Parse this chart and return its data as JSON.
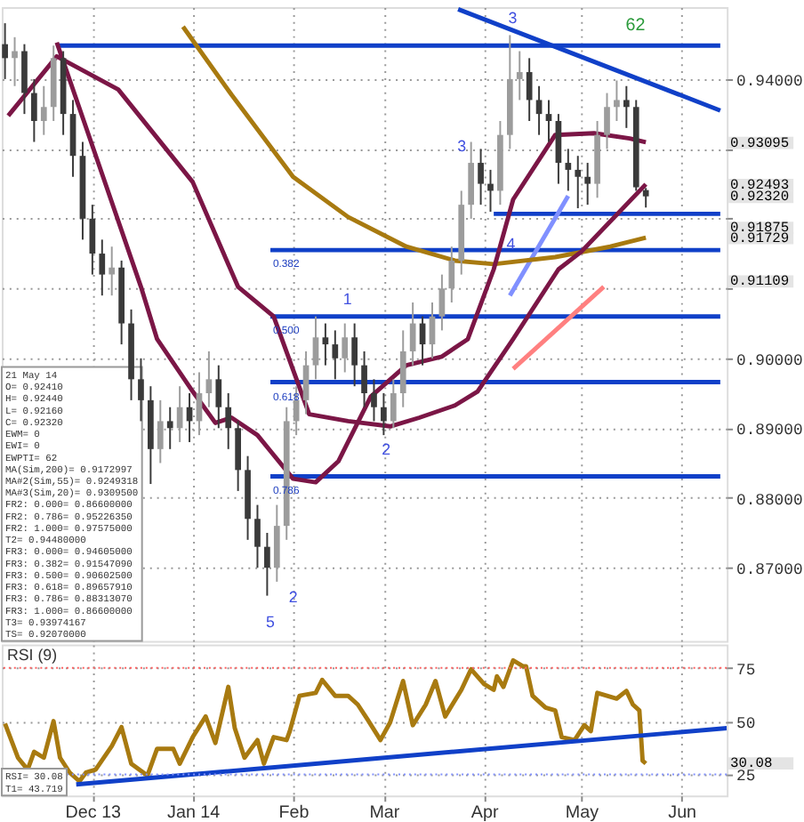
{
  "chart_data": [
    {
      "type": "candlestick",
      "x": [
        "2013-11-04",
        "2013-11-07",
        "2013-11-10",
        "2013-11-13",
        "2013-11-16",
        "2013-11-19",
        "2013-11-22",
        "2013-11-25",
        "2013-11-28",
        "2013-12-01",
        "2013-12-04",
        "2013-12-07",
        "2013-12-10",
        "2013-12-13",
        "2013-12-16",
        "2013-12-19",
        "2013-12-22",
        "2013-12-25",
        "2013-12-28",
        "2013-12-31",
        "2014-01-03",
        "2014-01-06",
        "2014-01-09",
        "2014-01-12",
        "2014-01-15",
        "2014-01-18",
        "2014-01-21",
        "2014-01-24",
        "2014-01-27",
        "2014-01-30",
        "2014-02-02",
        "2014-02-05",
        "2014-02-08",
        "2014-02-11",
        "2014-02-14",
        "2014-02-17",
        "2014-02-20",
        "2014-02-23",
        "2014-02-26",
        "2014-03-01",
        "2014-03-04",
        "2014-03-07",
        "2014-03-10",
        "2014-03-13",
        "2014-03-16",
        "2014-03-19",
        "2014-03-22",
        "2014-03-25",
        "2014-03-28",
        "2014-03-31",
        "2014-04-03",
        "2014-04-06",
        "2014-04-09",
        "2014-04-12",
        "2014-04-15",
        "2014-04-18",
        "2014-04-21",
        "2014-04-24",
        "2014-04-27",
        "2014-04-30",
        "2014-05-03",
        "2014-05-06",
        "2014-05-09",
        "2014-05-12",
        "2014-05-15",
        "2014-05-18",
        "2014-05-21"
      ],
      "ohlc": [
        [
          0.945,
          0.948,
          0.94,
          0.943
        ],
        [
          0.943,
          0.946,
          0.939,
          0.944
        ],
        [
          0.944,
          0.945,
          0.935,
          0.938
        ],
        [
          0.938,
          0.94,
          0.931,
          0.934
        ],
        [
          0.934,
          0.939,
          0.932,
          0.936
        ],
        [
          0.936,
          0.9448,
          0.934,
          0.943
        ],
        [
          0.943,
          0.944,
          0.932,
          0.935
        ],
        [
          0.935,
          0.937,
          0.926,
          0.929
        ],
        [
          0.929,
          0.931,
          0.917,
          0.92
        ],
        [
          0.92,
          0.922,
          0.912,
          0.915
        ],
        [
          0.915,
          0.917,
          0.909,
          0.912
        ],
        [
          0.912,
          0.916,
          0.909,
          0.913
        ],
        [
          0.913,
          0.914,
          0.902,
          0.905
        ],
        [
          0.905,
          0.907,
          0.894,
          0.897
        ],
        [
          0.897,
          0.9,
          0.891,
          0.894
        ],
        [
          0.894,
          0.896,
          0.882,
          0.887
        ],
        [
          0.887,
          0.894,
          0.885,
          0.891
        ],
        [
          0.891,
          0.893,
          0.887,
          0.89
        ],
        [
          0.89,
          0.896,
          0.888,
          0.893
        ],
        [
          0.893,
          0.895,
          0.888,
          0.891
        ],
        [
          0.891,
          0.898,
          0.889,
          0.895
        ],
        [
          0.895,
          0.901,
          0.893,
          0.897
        ],
        [
          0.897,
          0.899,
          0.89,
          0.893
        ],
        [
          0.893,
          0.895,
          0.887,
          0.89
        ],
        [
          0.89,
          0.891,
          0.881,
          0.884
        ],
        [
          0.884,
          0.886,
          0.874,
          0.877
        ],
        [
          0.877,
          0.879,
          0.87,
          0.873
        ],
        [
          0.873,
          0.875,
          0.866,
          0.87
        ],
        [
          0.87,
          0.879,
          0.868,
          0.876
        ],
        [
          0.876,
          0.893,
          0.874,
          0.891
        ],
        [
          0.891,
          0.896,
          0.889,
          0.894
        ],
        [
          0.894,
          0.901,
          0.892,
          0.899
        ],
        [
          0.899,
          0.906,
          0.897,
          0.903
        ],
        [
          0.903,
          0.905,
          0.899,
          0.902
        ],
        [
          0.902,
          0.904,
          0.897,
          0.9
        ],
        [
          0.9,
          0.905,
          0.898,
          0.903
        ],
        [
          0.903,
          0.905,
          0.896,
          0.899
        ],
        [
          0.899,
          0.901,
          0.893,
          0.895
        ],
        [
          0.895,
          0.897,
          0.891,
          0.893
        ],
        [
          0.893,
          0.895,
          0.889,
          0.891
        ],
        [
          0.891,
          0.897,
          0.89,
          0.895
        ],
        [
          0.895,
          0.904,
          0.893,
          0.901
        ],
        [
          0.901,
          0.908,
          0.899,
          0.905
        ],
        [
          0.905,
          0.906,
          0.899,
          0.902
        ],
        [
          0.902,
          0.908,
          0.9,
          0.906
        ],
        [
          0.906,
          0.912,
          0.904,
          0.91
        ],
        [
          0.91,
          0.916,
          0.908,
          0.914
        ],
        [
          0.914,
          0.924,
          0.912,
          0.922
        ],
        [
          0.922,
          0.931,
          0.92,
          0.928
        ],
        [
          0.928,
          0.93,
          0.922,
          0.925
        ],
        [
          0.925,
          0.927,
          0.921,
          0.924
        ],
        [
          0.924,
          0.934,
          0.922,
          0.932
        ],
        [
          0.932,
          0.9463,
          0.93,
          0.94
        ],
        [
          0.94,
          0.944,
          0.937,
          0.941
        ],
        [
          0.941,
          0.943,
          0.934,
          0.937
        ],
        [
          0.937,
          0.939,
          0.932,
          0.935
        ],
        [
          0.935,
          0.937,
          0.931,
          0.934
        ],
        [
          0.934,
          0.935,
          0.925,
          0.928
        ],
        [
          0.928,
          0.93,
          0.924,
          0.927
        ],
        [
          0.927,
          0.929,
          0.9215,
          0.926
        ],
        [
          0.926,
          0.928,
          0.922,
          0.925
        ],
        [
          0.925,
          0.934,
          0.923,
          0.932
        ],
        [
          0.932,
          0.938,
          0.93,
          0.936
        ],
        [
          0.936,
          0.9398,
          0.934,
          0.937
        ],
        [
          0.937,
          0.939,
          0.933,
          0.936
        ],
        [
          0.936,
          0.937,
          0.924,
          0.9245
        ],
        [
          0.9241,
          0.9244,
          0.9216,
          0.9232
        ]
      ],
      "series": [
        {
          "type": "line",
          "color": "#1040c8",
          "x": [
            "2013-11-20",
            "2014-06-13"
          ],
          "values": [
            0.9448,
            0.9448
          ]
        },
        {
          "type": "line",
          "color": "#1040c8",
          "x": [
            "2014-01-25",
            "2014-06-13"
          ],
          "values": [
            0.9155,
            0.9155
          ]
        },
        {
          "type": "line",
          "color": "#1040c8",
          "x": [
            "2014-01-25",
            "2014-06-13"
          ],
          "values": [
            0.906,
            0.906
          ]
        },
        {
          "type": "line",
          "color": "#1040c8",
          "x": [
            "2014-01-25",
            "2014-06-13"
          ],
          "values": [
            0.8966,
            0.8966
          ]
        },
        {
          "type": "line",
          "color": "#1040c8",
          "x": [
            "2014-01-25",
            "2014-06-13"
          ],
          "values": [
            0.8831,
            0.8831
          ]
        },
        {
          "type": "line",
          "color": "#1040c8",
          "x": [
            "2014-04-04",
            "2014-06-13"
          ],
          "values": [
            0.9207,
            0.9207
          ]
        },
        {
          "type": "line",
          "color": "#1040c8",
          "x": [
            "2014-03-24",
            "2014-06-13"
          ],
          "values": [
            0.95,
            0.9355
          ]
        },
        {
          "type": "line",
          "color": "#8090ff",
          "x": [
            "2014-04-09",
            "2014-04-27"
          ],
          "values": [
            0.909,
            0.92325
          ]
        },
        {
          "type": "line",
          "color": "#ff8080",
          "x": [
            "2014-04-10",
            "2014-05-08"
          ],
          "values": [
            0.8985,
            0.91025
          ]
        },
        {
          "type": "line",
          "color": "#a87a10",
          "x": [
            "2013-12-29",
            "2014-01-13",
            "2014-02-01",
            "2014-02-18",
            "2014-03-08",
            "2014-03-23",
            "2014-04-04",
            "2014-04-23",
            "2014-05-10",
            "2014-05-21"
          ],
          "values": [
            0.9475,
            0.93775,
            0.926,
            0.92025,
            0.916,
            0.914,
            0.9135,
            0.9145,
            0.916,
            0.9173
          ]
        },
        {
          "type": "line",
          "color": "#7b1646",
          "x": [
            "2013-11-05",
            "2013-11-20",
            "2013-12-09",
            "2014-01-01",
            "2014-01-15",
            "2014-01-26",
            "2014-02-06",
            "2014-02-18",
            "2014-03-03",
            "2014-03-12",
            "2014-03-23",
            "2014-03-30",
            "2014-04-10",
            "2014-04-24",
            "2014-05-01",
            "2014-05-21"
          ],
          "values": [
            0.93475,
            0.94325,
            0.9385,
            0.92525,
            0.91025,
            0.906,
            0.892,
            0.891,
            0.89025,
            0.8915,
            0.89325,
            0.89525,
            0.90275,
            0.91275,
            0.91525,
            0.92493
          ]
        },
        {
          "type": "line",
          "color": "#7b1646",
          "x": [
            "2013-11-20",
            "2013-12-03",
            "2013-12-16",
            "2013-12-21",
            "2014-01-01",
            "2014-01-08",
            "2014-01-13",
            "2014-01-21",
            "2014-02-01",
            "2014-02-08",
            "2014-02-15",
            "2014-02-25",
            "2014-03-08",
            "2014-03-19",
            "2014-03-27",
            "2014-04-04",
            "2014-04-10",
            "2014-04-23",
            "2014-05-05",
            "2014-05-16",
            "2014-05-21"
          ],
          "values": [
            0.94525,
            0.92775,
            0.91025,
            0.90275,
            0.89525,
            0.89075,
            0.8915,
            0.889,
            0.88275,
            0.88225,
            0.88525,
            0.8945,
            0.899,
            0.90025,
            0.90275,
            0.91275,
            0.92275,
            0.932,
            0.93225,
            0.9315,
            0.93095
          ]
        }
      ],
      "annotations": [
        "3",
        "62",
        "5",
        "2",
        "1",
        "2",
        "3",
        "4",
        "0.382",
        "0.500",
        "0.618",
        "0.786",
        "0.93095",
        "0.92493",
        "0.92320",
        "0.91875",
        "0.91729",
        "0.91109"
      ],
      "xlim": [
        "2013-11-03",
        "2014-06-15"
      ],
      "xticks": [
        {
          "value": "2013-12-01",
          "label": null
        },
        {
          "value": "2014-01-01",
          "label": null
        },
        {
          "value": "2014-02-01",
          "label": null
        },
        {
          "value": "2014-03-01",
          "label": null
        },
        {
          "value": "2014-04-01",
          "label": null
        },
        {
          "value": "2014-05-01",
          "label": null
        },
        {
          "value": "2014-06-01",
          "label": null
        }
      ],
      "ylim": [
        0.8595,
        0.9503
      ],
      "yticks": [
        {
          "value": 0.87,
          "label": "0.87000"
        },
        {
          "value": 0.88,
          "label": "0.88000"
        },
        {
          "value": 0.89,
          "label": "0.89000"
        },
        {
          "value": 0.9,
          "label": "0.90000"
        },
        {
          "value": 0.91,
          "label": null
        },
        {
          "value": 0.92,
          "label": null
        },
        {
          "value": 0.93,
          "label": null
        },
        {
          "value": 0.94,
          "label": "0.94000"
        }
      ],
      "grid": true,
      "tick_labels": "y"
    },
    {
      "type": "line",
      "title": "RSI (9)",
      "series": [
        {
          "type": "line",
          "color": "#a87a10",
          "x": [
            "2013-11-04",
            "2013-11-08",
            "2013-11-11",
            "2013-11-13",
            "2013-11-16",
            "2013-11-19",
            "2013-11-21",
            "2013-11-24",
            "2013-11-27",
            "2013-11-29",
            "2013-12-02",
            "2013-12-07",
            "2013-12-10",
            "2013-12-13",
            "2013-12-18",
            "2013-12-21",
            "2013-12-26",
            "2013-12-28",
            "2014-01-01",
            "2014-01-05",
            "2014-01-08",
            "2014-01-12",
            "2014-01-14",
            "2014-01-17",
            "2014-01-21",
            "2014-01-23",
            "2014-01-26",
            "2014-01-30",
            "2014-01-31",
            "2014-02-03",
            "2014-02-08",
            "2014-02-10",
            "2014-02-14",
            "2014-02-18",
            "2014-02-21",
            "2014-02-24",
            "2014-02-28",
            "2014-03-03",
            "2014-03-07",
            "2014-03-10",
            "2014-03-14",
            "2014-03-17",
            "2014-03-20",
            "2014-03-25",
            "2014-03-28",
            "2014-04-01",
            "2014-04-04",
            "2014-04-05",
            "2014-04-07",
            "2014-04-10",
            "2014-04-13",
            "2014-04-14",
            "2014-04-16",
            "2014-04-20",
            "2014-04-23",
            "2014-04-25",
            "2014-04-29",
            "2014-05-02",
            "2014-05-04",
            "2014-05-06",
            "2014-05-09",
            "2014-05-12",
            "2014-05-15",
            "2014-05-17",
            "2014-05-19",
            "2014-05-20",
            "2014-05-21"
          ],
          "values": [
            48.9,
            32.8,
            27.2,
            35.6,
            32.8,
            50,
            32.8,
            25.8,
            21.7,
            25.8,
            27.2,
            38.3,
            47.2,
            30,
            24.4,
            37,
            37,
            30,
            42.5,
            52.2,
            39.7,
            66.1,
            46.7,
            32.8,
            41.1,
            30,
            42.5,
            41.1,
            45.3,
            61.9,
            63.3,
            69.4,
            61.9,
            61.9,
            57.8,
            50.8,
            41.1,
            49.4,
            68.9,
            48.1,
            57.8,
            68.9,
            52.2,
            64.7,
            74.4,
            67.5,
            64.7,
            71.1,
            66.1,
            78.6,
            75.8,
            75.8,
            61.9,
            56.4,
            55,
            42.5,
            41.1,
            48.1,
            45.3,
            63.3,
            61.9,
            60.6,
            64.2,
            57.8,
            55,
            31.4,
            30.08
          ]
        },
        {
          "type": "line",
          "color": "#1040c8",
          "x": [
            "2013-11-26",
            "2014-06-15"
          ],
          "values": [
            20.25,
            46.7
          ]
        }
      ],
      "ref_lines": [
        {
          "axis": "y",
          "value": 75,
          "color": "#ff6060",
          "line_style": "dotted"
        },
        {
          "axis": "y",
          "value": 25,
          "color": "#8090ff",
          "line_style": "dotted"
        }
      ],
      "annotations": [
        "30.08"
      ],
      "xlim": [
        "2013-11-03",
        "2014-06-15"
      ],
      "xticks": [
        {
          "value": "2013-12-01",
          "label": "Dec 13"
        },
        {
          "value": "2014-01-01",
          "label": "Jan 14"
        },
        {
          "value": "2014-02-01",
          "label": "Feb"
        },
        {
          "value": "2014-03-01",
          "label": "Mar"
        },
        {
          "value": "2014-04-01",
          "label": "Apr"
        },
        {
          "value": "2014-05-01",
          "label": "May"
        },
        {
          "value": "2014-06-01",
          "label": "Jun"
        }
      ],
      "ylim": [
        15,
        86
      ],
      "yticks": [
        25,
        50,
        75
      ],
      "grid": true
    },
    {
      "type": "other",
      "annotations": [
        "21 May 14",
        "O= 0.92410",
        "H= 0.92440",
        "L= 0.92160",
        "C= 0.92320",
        "EWM= 0",
        "EWI= 0",
        "EWPTI= 62",
        "MA(Sim,200)= 0.9172997",
        "MA#2(Sim,55)= 0.9249318",
        "MA#3(Sim,20)= 0.9309500",
        "FR2: 0.000= 0.86600000",
        "FR2: 0.786= 0.95226350",
        "FR2: 1.000= 0.97575000",
        "T2= 0.94480000",
        "FR3: 0.000= 0.94605000",
        "FR3: 0.382= 0.91547090",
        "FR3: 0.500= 0.90602500",
        "FR3: 0.618= 0.89657910",
        "FR3: 0.786= 0.88313070",
        "FR3: 1.000= 0.86600000",
        "T3= 0.93974167",
        "TS= 0.92070000"
      ]
    },
    {
      "type": "other",
      "annotations": [
        "RSI= 30.08",
        "T1= 43.719"
      ]
    }
  ]
}
